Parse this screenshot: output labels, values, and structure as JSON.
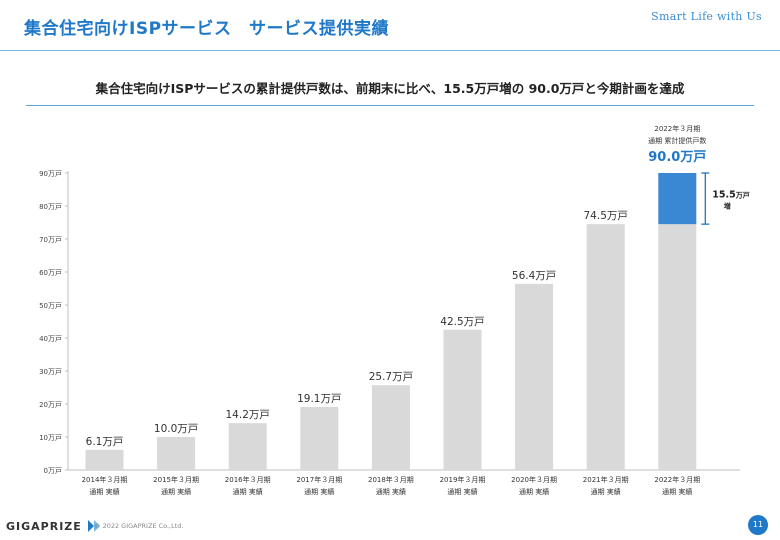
{
  "header": {
    "title": "集合住宅向けISPサービス　サービス提供実績",
    "tagline": "Smart Life with Us"
  },
  "headline": "集合住宅向けISPサービスの累計提供戸数は、前期末に比べ、15.5万戸増の 90.0万戸と今期計画を達成",
  "colors": {
    "accent": "#1f78c8",
    "bar": "#d9d9d9",
    "highlight": "#3a87d4"
  },
  "chart_data": {
    "type": "bar",
    "categories": [
      [
        "2014年３月期",
        "通期 実績"
      ],
      [
        "2015年３月期",
        "通期 実績"
      ],
      [
        "2016年３月期",
        "通期 実績"
      ],
      [
        "2017年３月期",
        "通期 実績"
      ],
      [
        "2018年３月期",
        "通期 実績"
      ],
      [
        "2019年３月期",
        "通期 実績"
      ],
      [
        "2020年３月期",
        "通期 実績"
      ],
      [
        "2021年３月期",
        "通期 実績"
      ],
      [
        "2022年３月期",
        "通期 実績"
      ]
    ],
    "values": [
      6.1,
      10.0,
      14.2,
      19.1,
      25.7,
      42.5,
      56.4,
      74.5,
      90.0
    ],
    "data_labels": [
      "6.1万戸",
      "10.0万戸",
      "14.2万戸",
      "19.1万戸",
      "25.7万戸",
      "42.5万戸",
      "56.4万戸",
      "74.5万戸",
      "90.0万戸"
    ],
    "yticks": [
      0,
      10,
      20,
      30,
      40,
      50,
      60,
      70,
      80,
      90
    ],
    "ytick_labels": [
      "0万戸",
      "10万戸",
      "20万戸",
      "30万戸",
      "40万戸",
      "50万戸",
      "60万戸",
      "70万戸",
      "80万戸",
      "90万戸"
    ],
    "ylim": [
      0,
      90
    ],
    "grid": false,
    "highlight": {
      "caption_line1": "2022年３月期",
      "caption_line2": "通期 累計提供戸数",
      "value_label": "90.0万戸",
      "increase_base": 74.5,
      "increase_value": "15.5",
      "increase_unit": "万戸",
      "increase_suffix": "増"
    }
  },
  "footer": {
    "logo": "GIGAPRIZE",
    "copyright": "© 2022 GIGAPRIZE Co.,Ltd.",
    "page": "11"
  }
}
